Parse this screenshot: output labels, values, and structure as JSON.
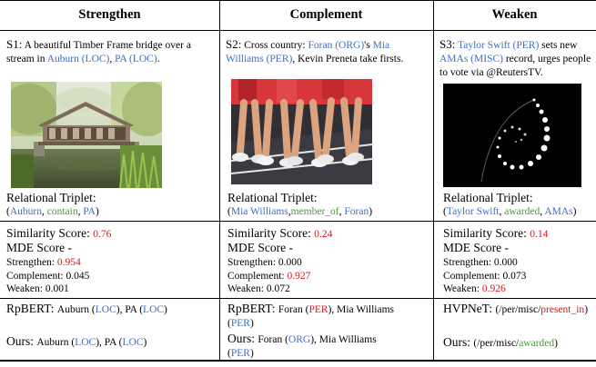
{
  "headers": [
    "Strengthen",
    "Complement",
    "Weaken"
  ],
  "cols": [
    {
      "id": "S1:",
      "caption": [
        {
          "t": "A beautiful Timber Frame bridge over a stream in ",
          "c": ""
        },
        {
          "t": "Auburn (LOC)",
          "c": "blue"
        },
        {
          "t": ", ",
          "c": ""
        },
        {
          "t": "PA (LOC)",
          "c": "blue"
        },
        {
          "t": ".",
          "c": ""
        }
      ],
      "triplet_label": "Relational Triplet:",
      "triplet": [
        {
          "t": "(",
          "c": ""
        },
        {
          "t": "Auburn",
          "c": "blue"
        },
        {
          "t": ", ",
          "c": ""
        },
        {
          "t": "contain",
          "c": "green"
        },
        {
          "t": ", ",
          "c": ""
        },
        {
          "t": "PA",
          "c": "blue"
        },
        {
          "t": ")",
          "c": ""
        }
      ],
      "similarity_label": "Similarity Score: ",
      "similarity": "0.76",
      "mde_label": "MDE Score -",
      "scores": [
        {
          "label": "Strengthen: ",
          "value": "0.954",
          "red": true
        },
        {
          "label": "Complement: ",
          "value": "0.045",
          "red": false
        },
        {
          "label": "Weaken: ",
          "value": "0.001",
          "red": false
        }
      ],
      "pred1": [
        {
          "t": "RpBERT: ",
          "c": "",
          "big": true
        },
        {
          "t": "Auburn (",
          "c": ""
        },
        {
          "t": "LOC",
          "c": "blue"
        },
        {
          "t": "), PA (",
          "c": ""
        },
        {
          "t": "LOC",
          "c": "blue"
        },
        {
          "t": ")",
          "c": ""
        }
      ],
      "pred2": [
        {
          "t": "Ours: ",
          "c": "",
          "big": true
        },
        {
          "t": "Auburn (",
          "c": ""
        },
        {
          "t": "LOC",
          "c": "blue"
        },
        {
          "t": "), PA (",
          "c": ""
        },
        {
          "t": "LOC",
          "c": "blue"
        },
        {
          "t": ")",
          "c": ""
        }
      ]
    },
    {
      "id": "S2:",
      "caption": [
        {
          "t": "Cross country: ",
          "c": ""
        },
        {
          "t": "Foran (ORG)",
          "c": "blue"
        },
        {
          "t": "'s ",
          "c": ""
        },
        {
          "t": "Mia Williams (PER)",
          "c": "blue"
        },
        {
          "t": ", Kevin Preneta take firsts.",
          "c": ""
        }
      ],
      "triplet_label": "Relational Triplet:",
      "triplet": [
        {
          "t": "(",
          "c": ""
        },
        {
          "t": "Mia Williams",
          "c": "blue"
        },
        {
          "t": ",",
          "c": ""
        },
        {
          "t": "member_of",
          "c": "green"
        },
        {
          "t": ", ",
          "c": ""
        },
        {
          "t": "Foran",
          "c": "blue"
        },
        {
          "t": ")",
          "c": ""
        }
      ],
      "similarity_label": "Similarity Score: ",
      "similarity": "0.24",
      "mde_label": "MDE Score -",
      "scores": [
        {
          "label": "Strengthen: ",
          "value": "0.000",
          "red": false
        },
        {
          "label": "Complement: ",
          "value": "0.927",
          "red": true
        },
        {
          "label": "Weaken: ",
          "value": "0.072",
          "red": false
        }
      ],
      "pred1": [
        {
          "t": "RpBERT: ",
          "c": "",
          "big": true
        },
        {
          "t": "Foran (",
          "c": ""
        },
        {
          "t": "PER",
          "c": "red"
        },
        {
          "t": "), Mia Williams (",
          "c": ""
        },
        {
          "t": "PER",
          "c": "blue"
        },
        {
          "t": ")",
          "c": ""
        }
      ],
      "pred2": [
        {
          "t": "Ours: ",
          "c": "",
          "big": true
        },
        {
          "t": "Foran (",
          "c": ""
        },
        {
          "t": "ORG",
          "c": "blue"
        },
        {
          "t": "), Mia Williams (",
          "c": ""
        },
        {
          "t": "PER",
          "c": "blue"
        },
        {
          "t": ")",
          "c": ""
        }
      ]
    },
    {
      "id": "S3:",
      "caption": [
        {
          "t": "Taylor Swift (PER)",
          "c": "blue"
        },
        {
          "t": " sets new ",
          "c": ""
        },
        {
          "t": "AMAs (MISC)",
          "c": "blue"
        },
        {
          "t": " record, urges people to vote via @ReutersTV.",
          "c": ""
        }
      ],
      "triplet_label": "Relational Triplet:",
      "triplet": [
        {
          "t": "(",
          "c": ""
        },
        {
          "t": "Taylor Swift",
          "c": "blue"
        },
        {
          "t": ", ",
          "c": ""
        },
        {
          "t": "awarded",
          "c": "green"
        },
        {
          "t": ", ",
          "c": ""
        },
        {
          "t": "AMAs",
          "c": "blue"
        },
        {
          "t": ")",
          "c": ""
        }
      ],
      "similarity_label": "Similarity Score: ",
      "similarity": "0.14",
      "mde_label": "MDE Score -",
      "scores": [
        {
          "label": "Strengthen: ",
          "value": "0.000",
          "red": false
        },
        {
          "label": "Complement: ",
          "value": "0.073",
          "red": false
        },
        {
          "label": "Weaken: ",
          "value": "0.926",
          "red": true
        }
      ],
      "pred1": [
        {
          "t": "HVPNeT: ",
          "c": "",
          "big": true
        },
        {
          "t": "(/per/misc/",
          "c": ""
        },
        {
          "t": "present_in",
          "c": "red"
        },
        {
          "t": ")",
          "c": ""
        }
      ],
      "pred2": [
        {
          "t": "Ours: ",
          "c": "",
          "big": true
        },
        {
          "t": "(/per/misc/",
          "c": ""
        },
        {
          "t": "awarded",
          "c": "green"
        },
        {
          "t": ")",
          "c": ""
        }
      ]
    }
  ],
  "colors": {
    "blue": "#3d6fc4",
    "green": "#4a9a3a",
    "red": "#d11a1a"
  }
}
